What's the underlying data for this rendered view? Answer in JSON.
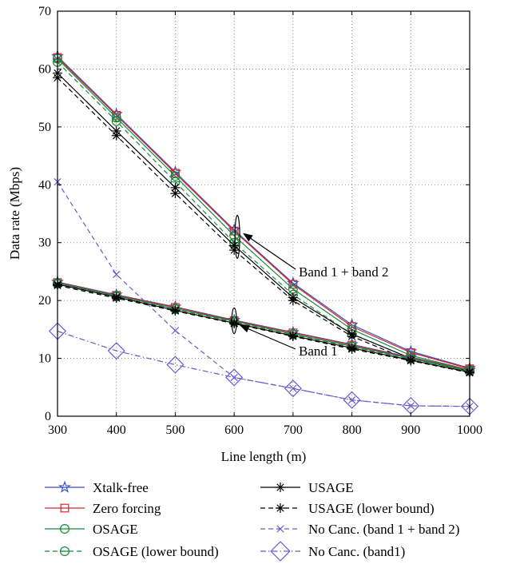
{
  "chart_data": {
    "type": "line",
    "xlabel": "Line length (m)",
    "ylabel": "Data rate (Mbps)",
    "xlim": [
      300,
      1000
    ],
    "ylim": [
      0,
      70
    ],
    "xticks": [
      300,
      400,
      500,
      600,
      700,
      800,
      900,
      1000
    ],
    "yticks": [
      0,
      10,
      20,
      30,
      40,
      50,
      60,
      70
    ],
    "grid": true,
    "legend_position": "below",
    "x": [
      300,
      400,
      500,
      600,
      700,
      800,
      900,
      1000
    ],
    "annotations": [
      {
        "text": "Band 1 + band 2",
        "points_to_x": 600,
        "points_to_y": 31
      },
      {
        "text": "Band 1",
        "points_to_x": 600,
        "points_to_y": 16.5
      }
    ],
    "series": [
      {
        "name": "Xtalk-free",
        "color": "#3a4fc4",
        "dash": "solid",
        "marker": "star",
        "group": "band1+2",
        "values": [
          62.2,
          52.2,
          42.2,
          32.2,
          23.0,
          15.8,
          11.2,
          8.3
        ]
      },
      {
        "name": "Zero forcing",
        "color": "#d9242b",
        "dash": "solid",
        "marker": "square",
        "group": "band1+2",
        "values": [
          62.0,
          52.0,
          42.0,
          32.0,
          22.8,
          15.5,
          11.0,
          8.2
        ]
      },
      {
        "name": "OSAGE",
        "color": "#1a8a3a",
        "dash": "solid",
        "marker": "circle",
        "group": "band1+2",
        "values": [
          61.8,
          51.6,
          41.5,
          31.2,
          22.0,
          15.0,
          10.5,
          8.0
        ]
      },
      {
        "name": "OSAGE (lower bound)",
        "color": "#1a8a3a",
        "dash": "dashed",
        "marker": "circle-dash",
        "group": "band1+2",
        "values": [
          61.2,
          51.0,
          40.5,
          30.0,
          21.0,
          14.2,
          10.0,
          7.8
        ]
      },
      {
        "name": "USAGE",
        "color": "#000000",
        "dash": "solid",
        "marker": "asterisk",
        "group": "band1+2",
        "values": [
          59.3,
          49.3,
          39.5,
          29.5,
          20.5,
          14.2,
          10.0,
          7.8
        ]
      },
      {
        "name": "USAGE (lower bound)",
        "color": "#000000",
        "dash": "dashed",
        "marker": "asterisk",
        "group": "band1+2",
        "values": [
          58.5,
          48.5,
          38.5,
          28.7,
          20.0,
          13.8,
          9.6,
          7.6
        ]
      },
      {
        "name": "No Canc. (band 1 + band 2)",
        "color": "#6a5acd",
        "dash": "dashed",
        "marker": "x",
        "group": "nocanc",
        "values": [
          40.5,
          24.5,
          14.8,
          6.7,
          4.8,
          2.8,
          1.8,
          1.7
        ]
      },
      {
        "name": "No Canc. (band1)",
        "color": "#6a5acd",
        "dash": "dashdot",
        "marker": "diamond",
        "group": "nocanc",
        "values": [
          14.7,
          11.3,
          8.9,
          6.7,
          4.8,
          2.8,
          1.8,
          1.7
        ]
      },
      {
        "name": "",
        "color": "#3a4fc4",
        "dash": "solid",
        "marker": "star",
        "group": "band1",
        "legend": false,
        "values": [
          23.2,
          21.0,
          18.9,
          16.6,
          14.5,
          12.4,
          10.2,
          8.0
        ]
      },
      {
        "name": "",
        "color": "#d9242b",
        "dash": "solid",
        "marker": "square",
        "group": "band1",
        "legend": false,
        "values": [
          23.1,
          20.9,
          18.8,
          16.5,
          14.4,
          12.3,
          10.1,
          8.0
        ]
      },
      {
        "name": "",
        "color": "#1a8a3a",
        "dash": "solid",
        "marker": "circle",
        "group": "band1",
        "legend": false,
        "values": [
          23.0,
          20.8,
          18.6,
          16.4,
          14.2,
          12.1,
          10.0,
          7.9
        ]
      },
      {
        "name": "",
        "color": "#1a8a3a",
        "dash": "dashed",
        "marker": "circle-dash",
        "group": "band1",
        "legend": false,
        "values": [
          22.9,
          20.7,
          18.5,
          16.3,
          14.1,
          12.0,
          9.9,
          7.8
        ]
      },
      {
        "name": "",
        "color": "#000000",
        "dash": "solid",
        "marker": "asterisk",
        "group": "band1",
        "legend": false,
        "values": [
          22.8,
          20.6,
          18.3,
          16.1,
          13.9,
          11.8,
          9.7,
          7.6
        ]
      },
      {
        "name": "",
        "color": "#000000",
        "dash": "dashed",
        "marker": "asterisk",
        "group": "band1",
        "legend": false,
        "values": [
          22.6,
          20.4,
          18.2,
          16.0,
          13.8,
          11.6,
          9.6,
          7.5
        ]
      }
    ]
  }
}
